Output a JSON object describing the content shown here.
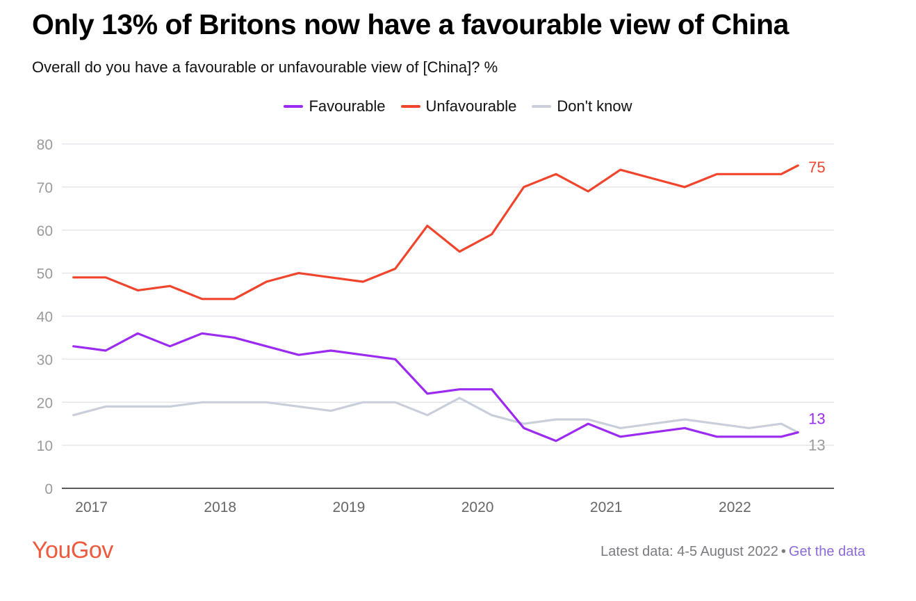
{
  "header": {
    "title": "Only 13% of Britons now have a favourable view of China",
    "subtitle": "Overall do you have a favourable or unfavourable view of [China]? %"
  },
  "brand": {
    "logo_text": "YouGov",
    "logo_color": "#ee5a3e"
  },
  "footer": {
    "latest": "Latest data: 4-5 August 2022",
    "separator": "•",
    "link": "Get the data"
  },
  "chart_data": {
    "type": "line",
    "ylim": [
      0,
      80
    ],
    "yticks": [
      0,
      10,
      20,
      30,
      40,
      50,
      60,
      70,
      80
    ],
    "xlim": [
      2016.87,
      2022.87
    ],
    "xticks": [
      {
        "label": "2017",
        "value": 2017.1
      },
      {
        "label": "2018",
        "value": 2018.1
      },
      {
        "label": "2019",
        "value": 2019.1
      },
      {
        "label": "2020",
        "value": 2020.1
      },
      {
        "label": "2021",
        "value": 2021.1
      },
      {
        "label": "2022",
        "value": 2022.1
      }
    ],
    "grid": true,
    "legend_position": "top-center",
    "x": [
      2016.96,
      2017.21,
      2017.46,
      2017.71,
      2017.96,
      2018.21,
      2018.46,
      2018.71,
      2018.96,
      2019.21,
      2019.46,
      2019.71,
      2019.96,
      2020.21,
      2020.46,
      2020.71,
      2020.96,
      2021.21,
      2021.46,
      2021.71,
      2021.96,
      2022.21,
      2022.46,
      2022.59
    ],
    "series": [
      {
        "name": "Favourable",
        "color": "#9b2bf0",
        "end_label": "13",
        "values": [
          33,
          32,
          36,
          33,
          36,
          35,
          33,
          31,
          32,
          31,
          30,
          22,
          23,
          23,
          14,
          11,
          15,
          12,
          13,
          14,
          12,
          12,
          12,
          13
        ]
      },
      {
        "name": "Unfavourable",
        "color": "#f0442c",
        "end_label": "75",
        "values": [
          49,
          49,
          46,
          47,
          44,
          44,
          48,
          50,
          49,
          48,
          51,
          61,
          55,
          59,
          70,
          73,
          69,
          74,
          72,
          70,
          73,
          73,
          73,
          75
        ]
      },
      {
        "name": "Don't know",
        "color": "#c9cfda",
        "end_label": "13",
        "values": [
          17,
          19,
          19,
          19,
          20,
          20,
          20,
          19,
          18,
          20,
          20,
          17,
          21,
          17,
          15,
          16,
          16,
          14,
          15,
          16,
          15,
          14,
          15,
          13
        ]
      }
    ]
  }
}
